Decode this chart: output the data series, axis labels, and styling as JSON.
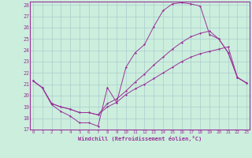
{
  "xlabel": "Windchill (Refroidissement éolien,°C)",
  "bg_color": "#cceedd",
  "grid_color": "#aacccc",
  "line_color": "#993399",
  "xmin": 0,
  "xmax": 23,
  "ymin": 17,
  "ymax": 28,
  "series": [
    [
      21.3,
      20.7,
      19.2,
      18.6,
      18.2,
      17.6,
      17.6,
      17.3,
      20.7,
      19.4,
      22.5,
      23.8,
      24.5,
      26.1,
      27.5,
      28.1,
      28.2,
      28.1,
      27.9,
      25.4,
      25.0,
      23.8,
      21.6,
      21.1
    ],
    [
      21.3,
      20.7,
      19.3,
      19.0,
      18.8,
      18.5,
      18.5,
      18.3,
      19.0,
      19.4,
      20.1,
      20.6,
      21.0,
      21.5,
      22.0,
      22.5,
      23.0,
      23.4,
      23.7,
      23.9,
      24.1,
      24.3,
      21.6,
      21.1
    ],
    [
      21.3,
      20.7,
      19.3,
      19.0,
      18.8,
      18.5,
      18.5,
      18.3,
      19.3,
      19.7,
      20.4,
      21.2,
      21.9,
      22.7,
      23.4,
      24.1,
      24.7,
      25.2,
      25.5,
      25.7,
      25.0,
      23.8,
      21.6,
      21.1
    ]
  ]
}
